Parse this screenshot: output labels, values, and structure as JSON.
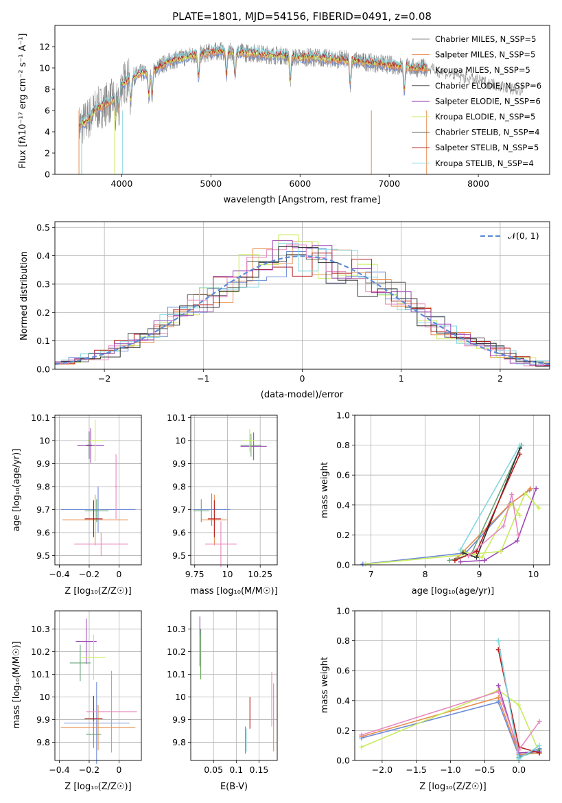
{
  "colors": {
    "series": [
      "#6c8ad5",
      "#e88d4d",
      "#888888",
      "#67a47a",
      "#9a49b4",
      "#c8eb5c",
      "#555555",
      "#b51b1b",
      "#84d7e0",
      "#e887be",
      "#2e2e2e"
    ],
    "normal": "#5b8bd6"
  },
  "panels": {
    "spectrum": {
      "title": "PLATE=1801, MJD=54156, FIBERID=0491, z=0.08",
      "xlabel": "wavelength [Angstrom, rest frame]",
      "ylabel": "Flux [fλ10⁻¹⁷ erg cm⁻² s⁻¹ A⁻¹]",
      "xlim": [
        3250,
        8800
      ],
      "ylim": [
        0,
        14
      ],
      "xticks": [
        4000,
        5000,
        6000,
        7000,
        8000
      ],
      "yticks": [
        0,
        2,
        4,
        6,
        8,
        10,
        12
      ],
      "legend": [
        "Chabrier MILES, N_SSP=5",
        "Salpeter MILES, N_SSP=5",
        "Kroupa MILES, N_SSP=5",
        "Chabrier ELODIE, N_SSP=6",
        "Salpeter ELODIE, N_SSP=6",
        "Kroupa ELODIE, N_SSP=5",
        "Chabrier STELIB, N_SSP=4",
        "Salpeter STELIB, N_SSP=5",
        "Kroupa STELIB, N_SSP=4"
      ]
    },
    "hist": {
      "xlabel": "(data-model)/error",
      "ylabel": "Normed distribution",
      "legend": "𝒩(0, 1)",
      "xlim": [
        -2.5,
        2.5
      ],
      "ylim": [
        0,
        0.52
      ],
      "xticks": [
        -2,
        -1,
        0,
        1,
        2
      ],
      "yticks": [
        0.0,
        0.1,
        0.2,
        0.3,
        0.4,
        0.5
      ]
    },
    "age_z": {
      "xlabel": "Z [log₁₀(Z/Z☉)]",
      "ylabel": "age  [log₁₀(age/yr)]",
      "xlim": [
        -0.43,
        0.15
      ],
      "ylim": [
        9.46,
        10.11
      ],
      "xticks": [
        -0.4,
        -0.2,
        0.0
      ],
      "yticks": [
        9.5,
        9.6,
        9.7,
        9.8,
        9.9,
        10.0,
        10.1
      ]
    },
    "age_mass": {
      "xlabel": "mass [log₁₀(M/M☉)]",
      "xlim": [
        9.72,
        10.38
      ],
      "ylim": [
        9.46,
        10.11
      ],
      "xticks": [
        9.75,
        10.0,
        10.25
      ],
      "yticks": [
        9.5,
        9.6,
        9.7,
        9.8,
        9.9,
        10.0,
        10.1
      ]
    },
    "mw_age": {
      "xlabel": "age  [log₁₀(age/yr)]",
      "ylabel": "mass weight",
      "xlim": [
        6.7,
        10.3
      ],
      "ylim": [
        0,
        1.0
      ],
      "xticks": [
        7,
        8,
        9,
        10
      ],
      "yticks": [
        0.0,
        0.2,
        0.4,
        0.6,
        0.8,
        1.0
      ]
    },
    "mass_z": {
      "xlabel": "Z [log₁₀(Z/Z☉)]",
      "ylabel": "mass [log₁₀(M/M☉)]",
      "xlim": [
        -0.43,
        0.15
      ],
      "ylim": [
        9.72,
        10.38
      ],
      "xticks": [
        -0.4,
        -0.2,
        0.0
      ],
      "yticks": [
        9.8,
        9.9,
        10.0,
        10.1,
        10.2,
        10.3
      ]
    },
    "mass_ebv": {
      "xlabel": "E(B-V)",
      "xlim": [
        0.0,
        0.19
      ],
      "ylim": [
        9.72,
        10.38
      ],
      "xticks": [
        0.05,
        0.1,
        0.15
      ],
      "yticks": [
        9.8,
        9.9,
        10.0,
        10.1,
        10.2,
        10.3
      ]
    },
    "mw_z": {
      "xlabel": "Z [log₁₀(Z/Z☉)]",
      "ylabel": "mass weight",
      "xlim": [
        -2.4,
        0.45
      ],
      "ylim": [
        0,
        1.0
      ],
      "xticks": [
        -2.0,
        -1.5,
        -1.0,
        -0.5,
        0.0
      ],
      "yticks": [
        0.0,
        0.2,
        0.4,
        0.6,
        0.8,
        1.0
      ]
    }
  },
  "chart_data": [
    {
      "type": "line",
      "title": "PLATE=1801, MJD=54156, FIBERID=0491, z=0.08",
      "xlabel": "wavelength [Angstrom, rest frame]",
      "ylabel": "Flux [fλ10⁻¹⁷ erg cm⁻² s⁻¹ A⁻¹]",
      "x": [
        3520,
        3600,
        3700,
        3800,
        3900,
        4000,
        4100,
        4200,
        4300,
        4400,
        4500,
        4600,
        4700,
        4800,
        4900,
        5000,
        5100,
        5200,
        5300,
        5400,
        5500,
        5600,
        5700,
        5800,
        5900,
        6000,
        6100,
        6200,
        6300,
        6400,
        6500,
        6600,
        6700,
        6800,
        6900,
        7000,
        7100,
        7200,
        7300,
        7400
      ],
      "series": [
        {
          "name": "Chabrier MILES, N_SSP=5",
          "values": [
            4.5,
            5.0,
            6.0,
            6.5,
            7.0,
            8.5,
            9.0,
            9.5,
            9.5,
            10.0,
            10.5,
            10.8,
            11.0,
            11.2,
            11.3,
            11.5,
            11.6,
            11.5,
            11.5,
            11.4,
            11.4,
            11.3,
            11.2,
            11.2,
            11.0,
            11.0,
            11.0,
            11.0,
            10.9,
            10.8,
            10.8,
            10.7,
            10.6,
            10.5,
            10.4,
            10.3,
            10.2,
            10.1,
            10.0,
            10.0
          ]
        }
      ],
      "xlim": [
        3250,
        8800
      ],
      "ylim": [
        0,
        14
      ]
    },
    {
      "type": "line",
      "xlabel": "(data-model)/error",
      "ylabel": "Normed distribution",
      "series": [
        {
          "name": "𝒩(0, 1)",
          "x": [
            -2.5,
            -2.0,
            -1.5,
            -1.0,
            -0.5,
            0.0,
            0.5,
            1.0,
            1.5,
            2.0,
            2.5
          ],
          "values": [
            0.018,
            0.054,
            0.13,
            0.242,
            0.352,
            0.399,
            0.352,
            0.242,
            0.13,
            0.054,
            0.018
          ]
        }
      ],
      "xlim": [
        -2.5,
        2.5
      ],
      "ylim": [
        0,
        0.52
      ]
    },
    {
      "type": "scatter",
      "xlabel": "age  [log₁₀(age/yr)]",
      "ylabel": "mass weight",
      "series": [
        {
          "x": [
            6.85,
            8.75,
            9.58,
            9.93
          ],
          "values": [
            0.005,
            0.08,
            0.41,
            0.5
          ]
        },
        {
          "x": [
            8.6,
            9.55,
            9.95
          ],
          "values": [
            0.05,
            0.4,
            0.51
          ]
        },
        {
          "x": [
            8.7,
            9.05,
            9.6,
            9.75
          ],
          "values": [
            0.09,
            0.05,
            0.41,
            0.33
          ]
        },
        {
          "x": [
            8.45,
            8.85,
            9.78
          ],
          "values": [
            0.03,
            0.07,
            0.8
          ]
        },
        {
          "x": [
            8.65,
            9.1,
            9.7,
            10.05
          ],
          "values": [
            0.02,
            0.03,
            0.16,
            0.51
          ]
        },
        {
          "x": [
            6.9,
            9.4,
            9.85,
            10.1
          ],
          "values": [
            0.005,
            0.09,
            0.48,
            0.38
          ]
        },
        {
          "x": [
            8.7,
            8.95,
            9.75
          ],
          "values": [
            0.08,
            0.05,
            0.78
          ]
        },
        {
          "x": [
            8.55,
            8.95,
            9.75
          ],
          "values": [
            0.03,
            0.09,
            0.74
          ]
        },
        {
          "x": [
            8.65,
            9.75
          ],
          "values": [
            0.1,
            0.8
          ]
        },
        {
          "x": [
            8.8,
            9.45,
            9.6,
            9.72
          ],
          "values": [
            0.06,
            0.26,
            0.47,
            0.2
          ]
        }
      ],
      "xlim": [
        6.7,
        10.3
      ],
      "ylim": [
        0,
        1.0
      ]
    },
    {
      "type": "scatter",
      "xlabel": "Z [log₁₀(Z/Z☉)]",
      "ylabel": "mass weight",
      "series": [
        {
          "x": [
            -2.3,
            -0.3,
            0.0,
            0.3
          ],
          "values": [
            0.15,
            0.39,
            0.03,
            0.08
          ]
        },
        {
          "x": [
            -2.3,
            -0.3,
            0.0,
            0.3
          ],
          "values": [
            0.16,
            0.42,
            0.04,
            0.05
          ]
        },
        {
          "x": [
            -2.3,
            -0.3,
            0.0,
            0.3
          ],
          "values": [
            0.09,
            0.47,
            0.37,
            0.05
          ]
        },
        {
          "x": [
            -0.3,
            0.0,
            0.3
          ],
          "values": [
            0.8,
            0.02,
            0.07
          ]
        },
        {
          "x": [
            -0.3,
            0.0,
            0.3
          ],
          "values": [
            0.5,
            0.05,
            0.06
          ]
        },
        {
          "x": [
            -0.3,
            0.0,
            0.3
          ],
          "values": [
            0.74,
            0.09,
            0.05
          ]
        },
        {
          "x": [
            -0.3,
            0.0,
            0.3
          ],
          "values": [
            0.8,
            0.01,
            0.1
          ]
        },
        {
          "x": [
            -2.3,
            -0.3,
            0.0,
            0.3
          ],
          "values": [
            0.17,
            0.46,
            0.07,
            0.26
          ]
        }
      ],
      "xlim": [
        -2.4,
        0.45
      ],
      "ylim": [
        0,
        1.0
      ]
    }
  ]
}
